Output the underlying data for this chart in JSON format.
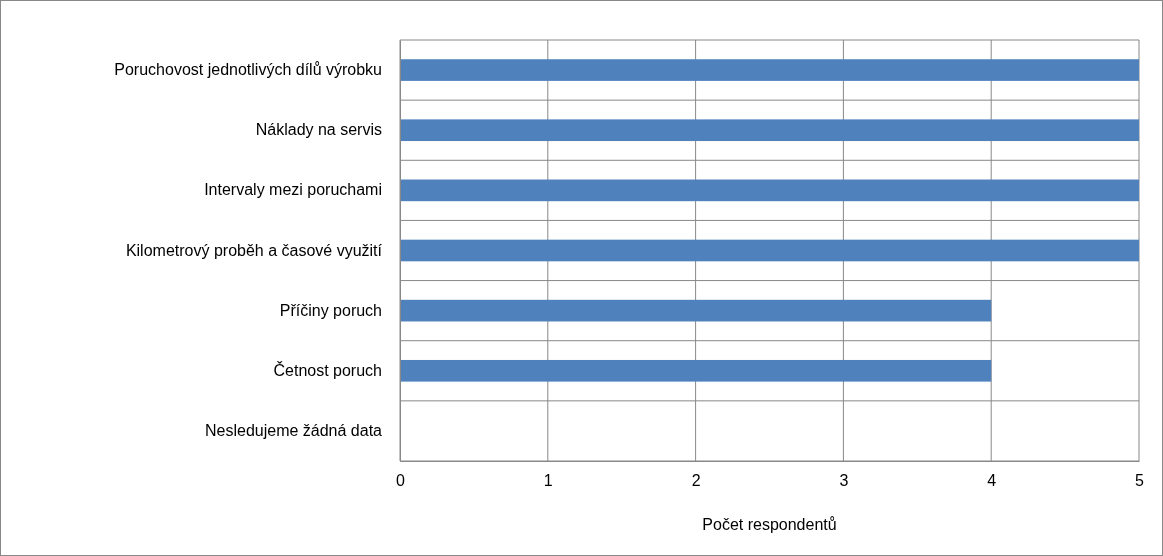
{
  "chart_data": {
    "type": "bar",
    "orientation": "horizontal",
    "categories": [
      "Poruchovost jednotlivých dílů výrobku",
      "Náklady na servis",
      "Intervaly mezi poruchami",
      "Kilometrový proběh a časové využití",
      "Příčiny poruch",
      "Četnost poruch",
      "Nesledujeme žádná data"
    ],
    "values": [
      5,
      5,
      5,
      5,
      4,
      4,
      0
    ],
    "color": "#4f81bd",
    "xlim": [
      0,
      5
    ],
    "xticks": [
      0,
      1,
      2,
      3,
      4,
      5
    ],
    "xlabel": "Počet respondentů",
    "grid": true
  }
}
